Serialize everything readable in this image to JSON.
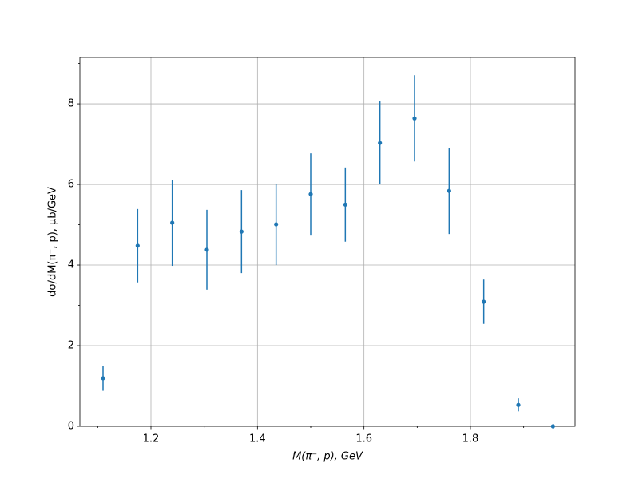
{
  "chart_data": {
    "type": "errorbar",
    "xlabel": "M(π⁻, p), GeV",
    "ylabel": "dσ/dM(π⁻, p), µb/GeV",
    "x": [
      1.11,
      1.175,
      1.24,
      1.305,
      1.37,
      1.435,
      1.5,
      1.565,
      1.63,
      1.695,
      1.76,
      1.825,
      1.89,
      1.955
    ],
    "values": [
      1.19,
      4.48,
      5.05,
      4.38,
      4.83,
      5.01,
      5.76,
      5.5,
      7.03,
      7.64,
      5.84,
      3.09,
      0.53,
      0
    ],
    "errors": [
      0.31,
      0.91,
      1.07,
      0.99,
      1.03,
      1.01,
      1.01,
      0.92,
      1.03,
      1.07,
      1.07,
      0.55,
      0.16,
      0
    ],
    "color": "#1f77b4",
    "xlim": [
      1.0665,
      1.9965
    ],
    "ylim": [
      0,
      9.15
    ],
    "xticks": [
      1.2,
      1.4,
      1.6,
      1.8
    ],
    "yticks": [
      0,
      2,
      4,
      6,
      8
    ],
    "xminorticks": [
      1.1,
      1.3,
      1.5,
      1.7,
      1.9
    ],
    "yminorticks": [
      1,
      3,
      5,
      7,
      9
    ],
    "grid": true
  }
}
